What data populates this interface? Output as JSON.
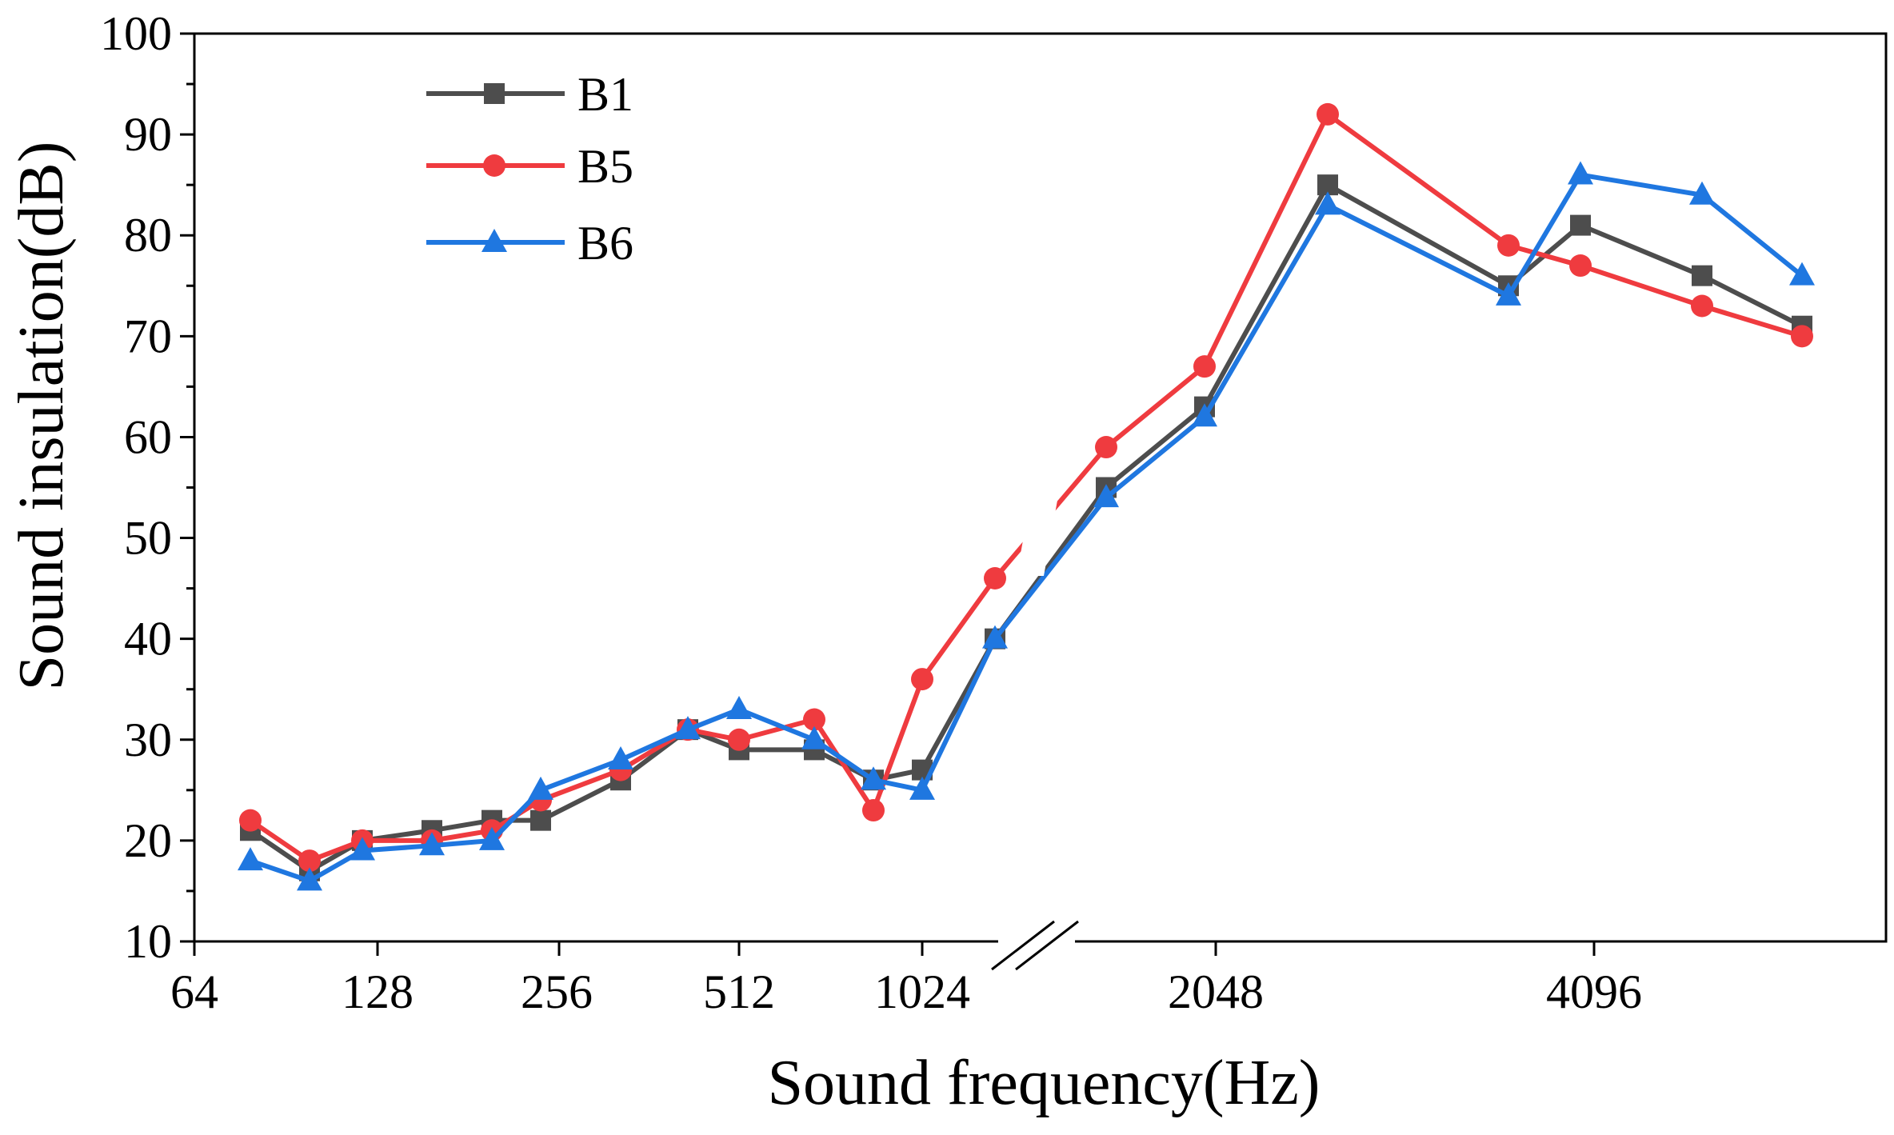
{
  "chart_data": {
    "type": "line",
    "title": "",
    "xlabel": "Sound frequency(Hz)",
    "ylabel": "Sound insulation(dB)",
    "ylim": [
      10,
      100
    ],
    "yticks": [
      "10",
      "20",
      "30",
      "40",
      "50",
      "60",
      "70",
      "80",
      "90",
      "100"
    ],
    "xtick_labels": [
      "64",
      "128",
      "256",
      "512",
      "1024",
      "2048",
      "4096"
    ],
    "x_axis_break": "between 1024 and 2048",
    "legend_position": "top-left",
    "grid": false,
    "x": [
      80,
      100,
      125,
      160,
      200,
      250,
      315,
      400,
      500,
      630,
      800,
      1000,
      1250,
      1600,
      2000,
      2500,
      3150,
      4000,
      5000,
      6300
    ],
    "series": [
      {
        "name": "B1",
        "color": "#4d4d4d",
        "marker": "square",
        "values": [
          21,
          17,
          20,
          21,
          22,
          22,
          26,
          31,
          29,
          29,
          26,
          27,
          40,
          55,
          63,
          85,
          75,
          81,
          76,
          71
        ]
      },
      {
        "name": "B5",
        "color": "#ef3b3f",
        "marker": "circle",
        "values": [
          22,
          18,
          20,
          20,
          21,
          24,
          27,
          31,
          30,
          32,
          23,
          36,
          46,
          59,
          67,
          92,
          79,
          77,
          73,
          70
        ]
      },
      {
        "name": "B6",
        "color": "#1f77e0",
        "marker": "triangle",
        "values": [
          18,
          16,
          19,
          19.5,
          20,
          25,
          28,
          31,
          33,
          30,
          26,
          25,
          40,
          54,
          62,
          83,
          74,
          86,
          84,
          76
        ]
      }
    ]
  }
}
